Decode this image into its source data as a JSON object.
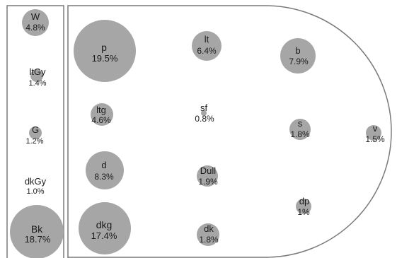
{
  "colors": {
    "circle_fill": "#a6a6a6",
    "outline": "#7a7a7a",
    "text": "#1a1a1a",
    "background": "#ffffff"
  },
  "panels": {
    "left": {
      "items": [
        {
          "code": "W",
          "percent": "4.8%",
          "value": 4.8
        },
        {
          "code": "ltGy",
          "percent": "1.4%",
          "value": 1.4
        },
        {
          "code": "G",
          "percent": "1.2%",
          "value": 1.2
        },
        {
          "code": "dkGy",
          "percent": "1.0%",
          "value": 1.0
        },
        {
          "code": "Bk",
          "percent": "18.7%",
          "value": 18.7
        }
      ]
    },
    "right": {
      "items": [
        {
          "code": "p",
          "percent": "19.5%",
          "value": 19.5
        },
        {
          "code": "lt",
          "percent": "6.4%",
          "value": 6.4
        },
        {
          "code": "b",
          "percent": "7.9%",
          "value": 7.9
        },
        {
          "code": "ltg",
          "percent": "4.6%",
          "value": 4.6
        },
        {
          "code": "sf",
          "percent": "0.8%",
          "value": 0.8
        },
        {
          "code": "s",
          "percent": "1.8%",
          "value": 1.8
        },
        {
          "code": "v",
          "percent": "1.5%",
          "value": 1.5
        },
        {
          "code": "d",
          "percent": "8.3%",
          "value": 8.3
        },
        {
          "code": "Dull",
          "percent": "1.9%",
          "value": 1.9
        },
        {
          "code": "dp",
          "percent": "1%",
          "value": 1.0
        },
        {
          "code": "dkg",
          "percent": "17.4%",
          "value": 17.4
        },
        {
          "code": "dk",
          "percent": "1.8%",
          "value": 1.8
        }
      ]
    }
  }
}
